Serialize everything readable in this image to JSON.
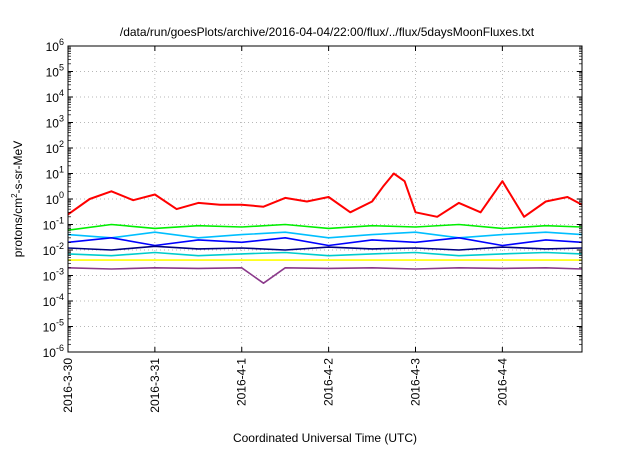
{
  "chart_data": {
    "type": "line",
    "title": "/data/run/goesPlots/archive/2016-04-04/22:00/flux/../flux/5daysMoonFluxes.txt",
    "xlabel": "Coordinated Universal Time (UTC)",
    "ylabel": {
      "base": "protons/cm",
      "sup": "2",
      "rest": "-s-sr-MeV"
    },
    "y_scale": "log",
    "ylim": [
      1e-06,
      1000000.0
    ],
    "xlim": [
      "2016-03-30T00:00",
      "2016-04-04T22:00"
    ],
    "x_ticks": [
      "2016-3-30",
      "2016-3-31",
      "2016-4-1",
      "2016-4-2",
      "2016-4-3",
      "2016-4-4"
    ],
    "x_tick_dates": [
      "2016-03-30T00:00",
      "2016-03-31T00:00",
      "2016-04-01T00:00",
      "2016-04-02T00:00",
      "2016-04-03T00:00",
      "2016-04-04T00:00"
    ],
    "y_ticks": [
      {
        "base": "10",
        "exp": "6"
      },
      {
        "base": "10",
        "exp": "5"
      },
      {
        "base": "10",
        "exp": "4"
      },
      {
        "base": "10",
        "exp": "3"
      },
      {
        "base": "10",
        "exp": "2"
      },
      {
        "base": "10",
        "exp": "1"
      },
      {
        "base": "10",
        "exp": "0"
      },
      {
        "base": "10",
        "exp": "-1"
      },
      {
        "base": "10",
        "exp": "-2"
      },
      {
        "base": "10",
        "exp": "-3"
      },
      {
        "base": "10",
        "exp": "-4"
      },
      {
        "base": "10",
        "exp": "-5"
      },
      {
        "base": "10",
        "exp": "-6"
      }
    ],
    "grid": true,
    "series": [
      {
        "color": "#ff0000",
        "x": [
          "2016-03-30T00:00",
          "2016-03-30T06:00",
          "2016-03-30T12:00",
          "2016-03-30T18:00",
          "2016-03-31T00:00",
          "2016-03-31T06:00",
          "2016-03-31T12:00",
          "2016-03-31T18:00",
          "2016-04-01T00:00",
          "2016-04-01T06:00",
          "2016-04-01T12:00",
          "2016-04-01T18:00",
          "2016-04-02T00:00",
          "2016-04-02T06:00",
          "2016-04-02T12:00",
          "2016-04-02T15:00",
          "2016-04-02T18:00",
          "2016-04-02T21:00",
          "2016-04-03T00:00",
          "2016-04-03T06:00",
          "2016-04-03T12:00",
          "2016-04-03T18:00",
          "2016-04-04T00:00",
          "2016-04-04T06:00",
          "2016-04-04T12:00",
          "2016-04-04T18:00",
          "2016-04-04T22:00"
        ],
        "y": [
          0.25,
          1.0,
          2.0,
          0.9,
          1.5,
          0.4,
          0.7,
          0.6,
          0.6,
          0.5,
          1.1,
          0.8,
          1.2,
          0.3,
          0.8,
          3.0,
          10.0,
          5.0,
          0.3,
          0.2,
          0.7,
          0.3,
          5.0,
          0.2,
          0.8,
          1.2,
          0.6
        ]
      },
      {
        "color": "#00ee00",
        "x": [
          "2016-03-30T00:00",
          "2016-03-30T12:00",
          "2016-03-31T00:00",
          "2016-03-31T12:00",
          "2016-04-01T00:00",
          "2016-04-01T12:00",
          "2016-04-02T00:00",
          "2016-04-02T12:00",
          "2016-04-03T00:00",
          "2016-04-03T12:00",
          "2016-04-04T00:00",
          "2016-04-04T12:00",
          "2016-04-04T22:00"
        ],
        "y": [
          0.06,
          0.1,
          0.07,
          0.09,
          0.08,
          0.1,
          0.07,
          0.09,
          0.08,
          0.1,
          0.07,
          0.09,
          0.08
        ]
      },
      {
        "color": "#00bfff",
        "x": [
          "2016-03-30T00:00",
          "2016-03-30T12:00",
          "2016-03-31T00:00",
          "2016-03-31T12:00",
          "2016-04-01T00:00",
          "2016-04-01T12:00",
          "2016-04-02T00:00",
          "2016-04-02T12:00",
          "2016-04-03T00:00",
          "2016-04-03T12:00",
          "2016-04-04T00:00",
          "2016-04-04T12:00",
          "2016-04-04T22:00"
        ],
        "y": [
          0.04,
          0.03,
          0.05,
          0.03,
          0.04,
          0.05,
          0.03,
          0.04,
          0.05,
          0.03,
          0.04,
          0.05,
          0.04
        ]
      },
      {
        "color": "#0000ff",
        "x": [
          "2016-03-30T00:00",
          "2016-03-30T12:00",
          "2016-03-31T00:00",
          "2016-03-31T12:00",
          "2016-04-01T00:00",
          "2016-04-01T12:00",
          "2016-04-02T00:00",
          "2016-04-02T12:00",
          "2016-04-03T00:00",
          "2016-04-03T12:00",
          "2016-04-04T00:00",
          "2016-04-04T12:00",
          "2016-04-04T22:00"
        ],
        "y": [
          0.02,
          0.03,
          0.015,
          0.025,
          0.02,
          0.03,
          0.015,
          0.025,
          0.02,
          0.03,
          0.015,
          0.025,
          0.02
        ]
      },
      {
        "color": "#000080",
        "x": [
          "2016-03-30T00:00",
          "2016-03-30T12:00",
          "2016-03-31T00:00",
          "2016-03-31T12:00",
          "2016-04-01T00:00",
          "2016-04-01T12:00",
          "2016-04-02T00:00",
          "2016-04-02T12:00",
          "2016-04-03T00:00",
          "2016-04-03T12:00",
          "2016-04-04T00:00",
          "2016-04-04T12:00",
          "2016-04-04T22:00"
        ],
        "y": [
          0.012,
          0.01,
          0.014,
          0.011,
          0.012,
          0.01,
          0.013,
          0.011,
          0.012,
          0.01,
          0.013,
          0.011,
          0.012
        ]
      },
      {
        "color": "#00cccc",
        "x": [
          "2016-03-30T00:00",
          "2016-03-30T12:00",
          "2016-03-31T00:00",
          "2016-03-31T12:00",
          "2016-04-01T00:00",
          "2016-04-01T12:00",
          "2016-04-02T00:00",
          "2016-04-02T12:00",
          "2016-04-03T00:00",
          "2016-04-03T12:00",
          "2016-04-04T00:00",
          "2016-04-04T12:00",
          "2016-04-04T22:00"
        ],
        "y": [
          0.007,
          0.006,
          0.008,
          0.006,
          0.007,
          0.008,
          0.006,
          0.007,
          0.008,
          0.006,
          0.007,
          0.008,
          0.007
        ]
      },
      {
        "color": "#ffff00",
        "x": [
          "2016-03-30T00:00",
          "2016-03-30T12:00",
          "2016-03-31T00:00",
          "2016-03-31T12:00",
          "2016-04-01T00:00",
          "2016-04-01T12:00",
          "2016-04-02T00:00",
          "2016-04-02T12:00",
          "2016-04-03T00:00",
          "2016-04-03T12:00",
          "2016-04-04T00:00",
          "2016-04-04T12:00",
          "2016-04-04T22:00"
        ],
        "y": [
          0.004,
          0.004,
          0.004,
          0.004,
          0.004,
          0.004,
          0.004,
          0.004,
          0.004,
          0.004,
          0.004,
          0.004,
          0.004
        ]
      },
      {
        "color": "#8b3a8b",
        "x": [
          "2016-03-30T00:00",
          "2016-03-30T12:00",
          "2016-03-31T00:00",
          "2016-03-31T12:00",
          "2016-04-01T00:00",
          "2016-04-01T06:00",
          "2016-04-01T12:00",
          "2016-04-02T00:00",
          "2016-04-02T12:00",
          "2016-04-03T00:00",
          "2016-04-03T12:00",
          "2016-04-04T00:00",
          "2016-04-04T12:00",
          "2016-04-04T22:00"
        ],
        "y": [
          0.002,
          0.0018,
          0.002,
          0.0019,
          0.002,
          0.0005,
          0.002,
          0.0019,
          0.002,
          0.0018,
          0.002,
          0.0019,
          0.002,
          0.0018
        ]
      }
    ]
  }
}
